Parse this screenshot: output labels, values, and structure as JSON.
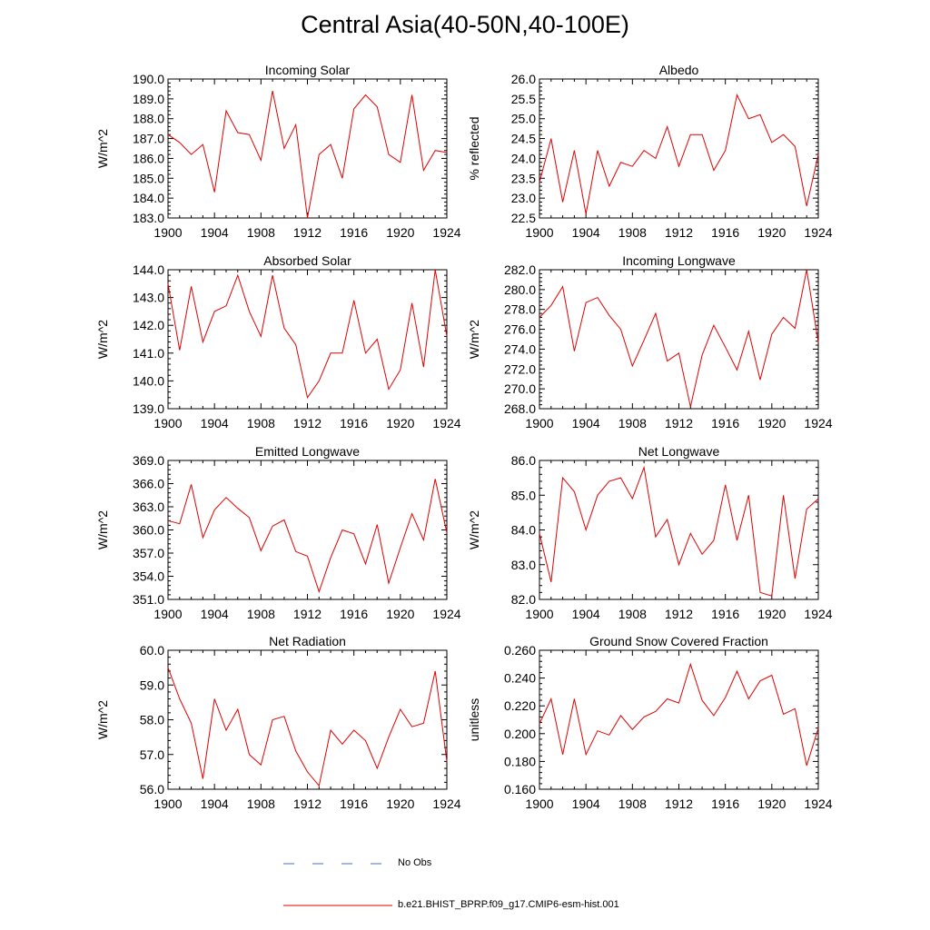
{
  "figure": {
    "title": "Central Asia(40-50N,40-100E)",
    "line_color": "#e00000",
    "obs_color": "#4b6bc8",
    "legend": [
      {
        "label": "No Obs",
        "style": "dashed",
        "color": "#4b6bc8"
      },
      {
        "label": "b.e21.BHIST_BPRP.f09_g17.CMIP6-esm-hist.001",
        "style": "solid",
        "color": "#e00000"
      }
    ]
  },
  "chart_data": [
    {
      "type": "line",
      "title": "Incoming Solar",
      "xlabel": "",
      "ylabel": "W/m^2",
      "xlim": [
        1900,
        1924
      ],
      "ylim": [
        183.0,
        190.0
      ],
      "decimals": 1,
      "xticks": [
        1900,
        1904,
        1908,
        1912,
        1916,
        1920,
        1924
      ],
      "yticks": [
        183.0,
        184.0,
        185.0,
        186.0,
        187.0,
        188.0,
        189.0,
        190.0
      ],
      "x": [
        1900,
        1901,
        1902,
        1903,
        1904,
        1905,
        1906,
        1907,
        1908,
        1909,
        1910,
        1911,
        1912,
        1913,
        1914,
        1915,
        1916,
        1917,
        1918,
        1919,
        1920,
        1921,
        1922,
        1923,
        1924
      ],
      "series": [
        {
          "name": "b.e21.BHIST_BPRP.f09_g17.CMIP6-esm-hist.001",
          "values": [
            187.2,
            186.8,
            186.2,
            186.7,
            184.3,
            188.4,
            187.3,
            187.2,
            185.9,
            189.4,
            186.5,
            187.7,
            183.0,
            186.2,
            186.7,
            185.0,
            188.5,
            189.2,
            188.6,
            186.2,
            185.8,
            189.2,
            185.4,
            186.4,
            186.3
          ]
        }
      ]
    },
    {
      "type": "line",
      "title": "Albedo",
      "xlabel": "",
      "ylabel": "% reflected",
      "xlim": [
        1900,
        1924
      ],
      "ylim": [
        22.5,
        26.0
      ],
      "decimals": 1,
      "xticks": [
        1900,
        1904,
        1908,
        1912,
        1916,
        1920,
        1924
      ],
      "yticks": [
        22.5,
        23.0,
        23.5,
        24.0,
        24.5,
        25.0,
        25.5,
        26.0
      ],
      "x": [
        1900,
        1901,
        1902,
        1903,
        1904,
        1905,
        1906,
        1907,
        1908,
        1909,
        1910,
        1911,
        1912,
        1913,
        1914,
        1915,
        1916,
        1917,
        1918,
        1919,
        1920,
        1921,
        1922,
        1923,
        1924
      ],
      "series": [
        {
          "name": "b.e21.BHIST_BPRP.f09_g17.CMIP6-esm-hist.001",
          "values": [
            23.4,
            24.5,
            22.9,
            24.2,
            22.6,
            24.2,
            23.3,
            23.9,
            23.8,
            24.2,
            24.0,
            24.8,
            23.8,
            24.6,
            24.6,
            23.7,
            24.2,
            25.6,
            25.0,
            25.1,
            24.4,
            24.6,
            24.3,
            22.8,
            24.1
          ]
        }
      ]
    },
    {
      "type": "line",
      "title": "Absorbed Solar",
      "xlabel": "",
      "ylabel": "W/m^2",
      "xlim": [
        1900,
        1924
      ],
      "ylim": [
        139.0,
        144.0
      ],
      "decimals": 1,
      "xticks": [
        1900,
        1904,
        1908,
        1912,
        1916,
        1920,
        1924
      ],
      "yticks": [
        139.0,
        140.0,
        141.0,
        142.0,
        143.0,
        144.0
      ],
      "x": [
        1900,
        1901,
        1902,
        1903,
        1904,
        1905,
        1906,
        1907,
        1908,
        1909,
        1910,
        1911,
        1912,
        1913,
        1914,
        1915,
        1916,
        1917,
        1918,
        1919,
        1920,
        1921,
        1922,
        1923,
        1924
      ],
      "series": [
        {
          "name": "b.e21.BHIST_BPRP.f09_g17.CMIP6-esm-hist.001",
          "values": [
            143.5,
            141.1,
            143.4,
            141.4,
            142.5,
            142.7,
            143.8,
            142.5,
            141.6,
            143.8,
            141.9,
            141.3,
            139.4,
            140.0,
            141.0,
            141.0,
            142.9,
            141.0,
            141.5,
            139.7,
            140.4,
            142.8,
            140.5,
            144.0,
            141.6
          ]
        }
      ]
    },
    {
      "type": "line",
      "title": "Incoming Longwave",
      "xlabel": "",
      "ylabel": "W/m^2",
      "xlim": [
        1900,
        1924
      ],
      "ylim": [
        268.0,
        282.0
      ],
      "decimals": 1,
      "xticks": [
        1900,
        1904,
        1908,
        1912,
        1916,
        1920,
        1924
      ],
      "yticks": [
        268.0,
        270.0,
        272.0,
        274.0,
        276.0,
        278.0,
        280.0,
        282.0
      ],
      "x": [
        1900,
        1901,
        1902,
        1903,
        1904,
        1905,
        1906,
        1907,
        1908,
        1909,
        1910,
        1911,
        1912,
        1913,
        1914,
        1915,
        1916,
        1917,
        1918,
        1919,
        1920,
        1921,
        1922,
        1923,
        1924
      ],
      "series": [
        {
          "name": "b.e21.BHIST_BPRP.f09_g17.CMIP6-esm-hist.001",
          "values": [
            277.2,
            278.4,
            280.3,
            273.8,
            278.7,
            279.2,
            277.4,
            276.0,
            272.3,
            274.9,
            277.6,
            272.8,
            273.6,
            268.2,
            273.4,
            276.4,
            274.2,
            271.9,
            275.8,
            270.9,
            275.5,
            277.2,
            276.1,
            282.0,
            274.7
          ]
        }
      ]
    },
    {
      "type": "line",
      "title": "Emitted Longwave",
      "xlabel": "",
      "ylabel": "W/m^2",
      "xlim": [
        1900,
        1924
      ],
      "ylim": [
        351.0,
        369.0
      ],
      "decimals": 1,
      "xticks": [
        1900,
        1904,
        1908,
        1912,
        1916,
        1920,
        1924
      ],
      "yticks": [
        351.0,
        354.0,
        357.0,
        360.0,
        363.0,
        366.0,
        369.0
      ],
      "x": [
        1900,
        1901,
        1902,
        1903,
        1904,
        1905,
        1906,
        1907,
        1908,
        1909,
        1910,
        1911,
        1912,
        1913,
        1914,
        1915,
        1916,
        1917,
        1918,
        1919,
        1920,
        1921,
        1922,
        1923,
        1924
      ],
      "series": [
        {
          "name": "b.e21.BHIST_BPRP.f09_g17.CMIP6-esm-hist.001",
          "values": [
            361.2,
            360.8,
            365.9,
            359.0,
            362.6,
            364.2,
            362.8,
            361.6,
            357.3,
            360.5,
            361.3,
            357.2,
            356.6,
            352.0,
            356.4,
            360.0,
            359.5,
            355.6,
            360.7,
            353.1,
            357.7,
            362.1,
            358.7,
            366.6,
            359.6
          ]
        }
      ]
    },
    {
      "type": "line",
      "title": "Net Longwave",
      "xlabel": "",
      "ylabel": "W/m^2",
      "xlim": [
        1900,
        1924
      ],
      "ylim": [
        82.0,
        86.0
      ],
      "decimals": 1,
      "xticks": [
        1900,
        1904,
        1908,
        1912,
        1916,
        1920,
        1924
      ],
      "yticks": [
        82.0,
        83.0,
        84.0,
        85.0,
        86.0
      ],
      "x": [
        1900,
        1901,
        1902,
        1903,
        1904,
        1905,
        1906,
        1907,
        1908,
        1909,
        1910,
        1911,
        1912,
        1913,
        1914,
        1915,
        1916,
        1917,
        1918,
        1919,
        1920,
        1921,
        1922,
        1923,
        1924
      ],
      "series": [
        {
          "name": "b.e21.BHIST_BPRP.f09_g17.CMIP6-esm-hist.001",
          "values": [
            83.9,
            82.5,
            85.5,
            85.1,
            84.0,
            85.0,
            85.4,
            85.5,
            84.9,
            85.8,
            83.8,
            84.3,
            83.0,
            83.9,
            83.3,
            83.7,
            85.3,
            83.7,
            85.0,
            82.2,
            82.1,
            85.0,
            82.6,
            84.6,
            84.9
          ]
        }
      ]
    },
    {
      "type": "line",
      "title": "Net Radiation",
      "xlabel": "",
      "ylabel": "W/m^2",
      "xlim": [
        1900,
        1924
      ],
      "ylim": [
        56.0,
        60.0
      ],
      "decimals": 1,
      "xticks": [
        1900,
        1904,
        1908,
        1912,
        1916,
        1920,
        1924
      ],
      "yticks": [
        56.0,
        57.0,
        58.0,
        59.0,
        60.0
      ],
      "x": [
        1900,
        1901,
        1902,
        1903,
        1904,
        1905,
        1906,
        1907,
        1908,
        1909,
        1910,
        1911,
        1912,
        1913,
        1914,
        1915,
        1916,
        1917,
        1918,
        1919,
        1920,
        1921,
        1922,
        1923,
        1924
      ],
      "series": [
        {
          "name": "b.e21.BHIST_BPRP.f09_g17.CMIP6-esm-hist.001",
          "values": [
            59.5,
            58.6,
            57.9,
            56.3,
            58.6,
            57.7,
            58.3,
            57.0,
            56.7,
            58.0,
            58.1,
            57.1,
            56.5,
            56.1,
            57.7,
            57.3,
            57.7,
            57.4,
            56.6,
            57.5,
            58.3,
            57.8,
            57.9,
            59.4,
            56.8
          ]
        }
      ]
    },
    {
      "type": "line",
      "title": "Ground Snow Covered Fraction",
      "xlabel": "",
      "ylabel": "unitless",
      "xlim": [
        1900,
        1924
      ],
      "ylim": [
        0.16,
        0.26
      ],
      "decimals": 3,
      "xticks": [
        1900,
        1904,
        1908,
        1912,
        1916,
        1920,
        1924
      ],
      "yticks": [
        0.16,
        0.18,
        0.2,
        0.22,
        0.24,
        0.26
      ],
      "x": [
        1900,
        1901,
        1902,
        1903,
        1904,
        1905,
        1906,
        1907,
        1908,
        1909,
        1910,
        1911,
        1912,
        1913,
        1914,
        1915,
        1916,
        1917,
        1918,
        1919,
        1920,
        1921,
        1922,
        1923,
        1924
      ],
      "series": [
        {
          "name": "b.e21.BHIST_BPRP.f09_g17.CMIP6-esm-hist.001",
          "values": [
            0.207,
            0.225,
            0.185,
            0.225,
            0.185,
            0.202,
            0.199,
            0.213,
            0.203,
            0.212,
            0.216,
            0.225,
            0.222,
            0.25,
            0.224,
            0.213,
            0.226,
            0.245,
            0.225,
            0.238,
            0.242,
            0.214,
            0.218,
            0.177,
            0.204
          ]
        }
      ]
    }
  ]
}
